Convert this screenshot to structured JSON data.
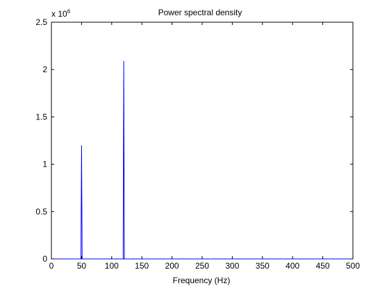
{
  "chart_data": {
    "type": "line",
    "title": "Power spectral density",
    "xlabel": "Frequency (Hz)",
    "ylabel": "",
    "xlim": [
      0,
      500
    ],
    "ylim": [
      0,
      2.5
    ],
    "x_ticks": [
      0,
      50,
      100,
      150,
      200,
      250,
      300,
      350,
      400,
      450,
      500
    ],
    "y_ticks": [
      0,
      0.5,
      1,
      1.5,
      2,
      2.5
    ],
    "x_tick_labels": [
      "0",
      "50",
      "100",
      "150",
      "200",
      "250",
      "300",
      "350",
      "400",
      "450",
      "500"
    ],
    "y_tick_labels": [
      "0",
      "0.5",
      "1",
      "1.5",
      "2",
      "2.5"
    ],
    "y_exponent": {
      "base": "x 10",
      "power": "6"
    },
    "grid": false,
    "legend": false,
    "series_color": "#0000ff",
    "series": [
      {
        "x": [
          0,
          49,
          50,
          51,
          119,
          120,
          121,
          500
        ],
        "y": [
          0,
          0,
          1.2,
          0,
          0,
          2.09,
          0,
          0
        ]
      }
    ]
  }
}
